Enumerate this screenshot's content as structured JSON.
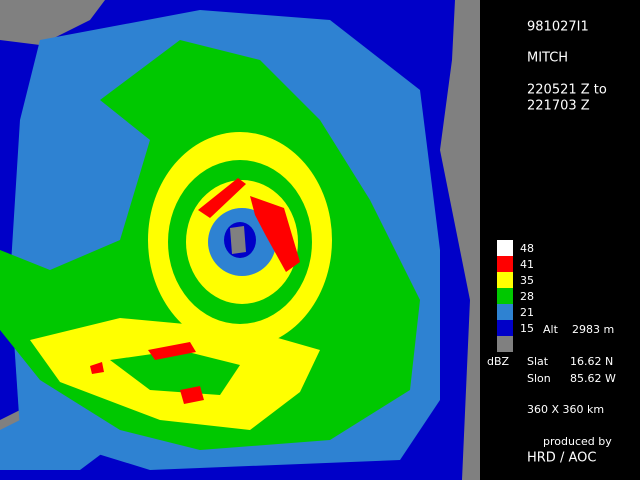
{
  "header": {
    "id": "981027I1",
    "storm": "MITCH",
    "time_from": "220521 Z to",
    "time_to": "221703 Z"
  },
  "legend": {
    "unit": "dBZ",
    "levels": [
      {
        "label": 48,
        "color": "#ffffff"
      },
      {
        "label": 41,
        "color": "#ff0000"
      },
      {
        "label": 35,
        "color": "#ffff00"
      },
      {
        "label": 28,
        "color": "#00c800"
      },
      {
        "label": 21,
        "color": "#2e82d2"
      },
      {
        "label": 15,
        "color": "#0000c8"
      }
    ],
    "no_data_color": "#808080"
  },
  "altitude": {
    "label": "Alt",
    "value": "2983 m"
  },
  "slat": {
    "label": "Slat",
    "value": "16.62 N"
  },
  "slon": {
    "label": "Slon",
    "value": "85.62 W"
  },
  "domain": "360 X 360 km",
  "credit": {
    "line1": "produced by",
    "line2": "HRD / AOC"
  }
}
